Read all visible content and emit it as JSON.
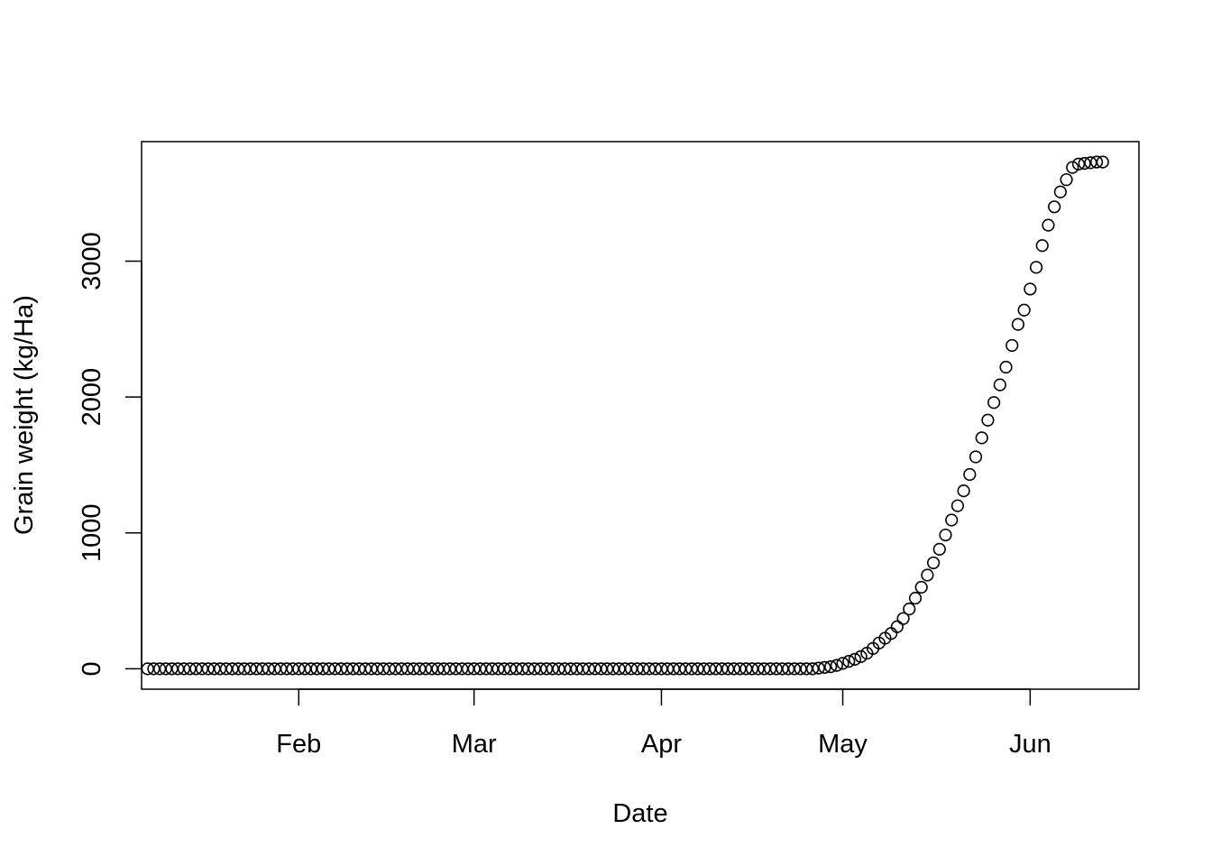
{
  "chart_data": {
    "type": "scatter",
    "title": "",
    "xlabel": "Date",
    "ylabel": "Grain weight (kg/Ha)",
    "x_scale": "date",
    "xlim": [
      "2024-01-06",
      "2024-06-19"
    ],
    "ylim": [
      -150,
      3880
    ],
    "x_ticks": [
      {
        "date": "2024-02-01",
        "label": "Feb"
      },
      {
        "date": "2024-03-01",
        "label": "Mar"
      },
      {
        "date": "2024-04-01",
        "label": "Apr"
      },
      {
        "date": "2024-05-01",
        "label": "May"
      },
      {
        "date": "2024-06-01",
        "label": "Jun"
      }
    ],
    "y_ticks": [
      0,
      1000,
      2000,
      3000
    ],
    "grid": false,
    "marker": "open-circle",
    "series": [
      {
        "points": [
          [
            "2024-01-07",
            0
          ],
          [
            "2024-01-08",
            0
          ],
          [
            "2024-01-09",
            0
          ],
          [
            "2024-01-10",
            0
          ],
          [
            "2024-01-11",
            0
          ],
          [
            "2024-01-12",
            0
          ],
          [
            "2024-01-13",
            0
          ],
          [
            "2024-01-14",
            0
          ],
          [
            "2024-01-15",
            0
          ],
          [
            "2024-01-16",
            0
          ],
          [
            "2024-01-17",
            0
          ],
          [
            "2024-01-18",
            0
          ],
          [
            "2024-01-19",
            0
          ],
          [
            "2024-01-20",
            0
          ],
          [
            "2024-01-21",
            0
          ],
          [
            "2024-01-22",
            0
          ],
          [
            "2024-01-23",
            0
          ],
          [
            "2024-01-24",
            0
          ],
          [
            "2024-01-25",
            0
          ],
          [
            "2024-01-26",
            0
          ],
          [
            "2024-01-27",
            0
          ],
          [
            "2024-01-28",
            0
          ],
          [
            "2024-01-29",
            0
          ],
          [
            "2024-01-30",
            0
          ],
          [
            "2024-01-31",
            0
          ],
          [
            "2024-02-01",
            0
          ],
          [
            "2024-02-02",
            0
          ],
          [
            "2024-02-03",
            0
          ],
          [
            "2024-02-04",
            0
          ],
          [
            "2024-02-05",
            0
          ],
          [
            "2024-02-06",
            0
          ],
          [
            "2024-02-07",
            0
          ],
          [
            "2024-02-08",
            0
          ],
          [
            "2024-02-09",
            0
          ],
          [
            "2024-02-10",
            0
          ],
          [
            "2024-02-11",
            0
          ],
          [
            "2024-02-12",
            0
          ],
          [
            "2024-02-13",
            0
          ],
          [
            "2024-02-14",
            0
          ],
          [
            "2024-02-15",
            0
          ],
          [
            "2024-02-16",
            0
          ],
          [
            "2024-02-17",
            0
          ],
          [
            "2024-02-18",
            0
          ],
          [
            "2024-02-19",
            0
          ],
          [
            "2024-02-20",
            0
          ],
          [
            "2024-02-21",
            0
          ],
          [
            "2024-02-22",
            0
          ],
          [
            "2024-02-23",
            0
          ],
          [
            "2024-02-24",
            0
          ],
          [
            "2024-02-25",
            0
          ],
          [
            "2024-02-26",
            0
          ],
          [
            "2024-02-27",
            0
          ],
          [
            "2024-02-28",
            0
          ],
          [
            "2024-02-29",
            0
          ],
          [
            "2024-03-01",
            0
          ],
          [
            "2024-03-02",
            0
          ],
          [
            "2024-03-03",
            0
          ],
          [
            "2024-03-04",
            0
          ],
          [
            "2024-03-05",
            0
          ],
          [
            "2024-03-06",
            0
          ],
          [
            "2024-03-07",
            0
          ],
          [
            "2024-03-08",
            0
          ],
          [
            "2024-03-09",
            0
          ],
          [
            "2024-03-10",
            0
          ],
          [
            "2024-03-11",
            0
          ],
          [
            "2024-03-12",
            0
          ],
          [
            "2024-03-13",
            0
          ],
          [
            "2024-03-14",
            0
          ],
          [
            "2024-03-15",
            0
          ],
          [
            "2024-03-16",
            0
          ],
          [
            "2024-03-17",
            0
          ],
          [
            "2024-03-18",
            0
          ],
          [
            "2024-03-19",
            0
          ],
          [
            "2024-03-20",
            0
          ],
          [
            "2024-03-21",
            0
          ],
          [
            "2024-03-22",
            0
          ],
          [
            "2024-03-23",
            0
          ],
          [
            "2024-03-24",
            0
          ],
          [
            "2024-03-25",
            0
          ],
          [
            "2024-03-26",
            0
          ],
          [
            "2024-03-27",
            0
          ],
          [
            "2024-03-28",
            0
          ],
          [
            "2024-03-29",
            0
          ],
          [
            "2024-03-30",
            0
          ],
          [
            "2024-03-31",
            0
          ],
          [
            "2024-04-01",
            0
          ],
          [
            "2024-04-02",
            0
          ],
          [
            "2024-04-03",
            0
          ],
          [
            "2024-04-04",
            0
          ],
          [
            "2024-04-05",
            0
          ],
          [
            "2024-04-06",
            0
          ],
          [
            "2024-04-07",
            0
          ],
          [
            "2024-04-08",
            0
          ],
          [
            "2024-04-09",
            0
          ],
          [
            "2024-04-10",
            0
          ],
          [
            "2024-04-11",
            0
          ],
          [
            "2024-04-12",
            0
          ],
          [
            "2024-04-13",
            0
          ],
          [
            "2024-04-14",
            0
          ],
          [
            "2024-04-15",
            0
          ],
          [
            "2024-04-16",
            0
          ],
          [
            "2024-04-17",
            0
          ],
          [
            "2024-04-18",
            0
          ],
          [
            "2024-04-19",
            0
          ],
          [
            "2024-04-20",
            0
          ],
          [
            "2024-04-21",
            0
          ],
          [
            "2024-04-22",
            0
          ],
          [
            "2024-04-23",
            0
          ],
          [
            "2024-04-24",
            0
          ],
          [
            "2024-04-25",
            0
          ],
          [
            "2024-04-26",
            0
          ],
          [
            "2024-04-27",
            5
          ],
          [
            "2024-04-28",
            10
          ],
          [
            "2024-04-29",
            15
          ],
          [
            "2024-04-30",
            25
          ],
          [
            "2024-05-01",
            40
          ],
          [
            "2024-05-02",
            55
          ],
          [
            "2024-05-03",
            70
          ],
          [
            "2024-05-04",
            90
          ],
          [
            "2024-05-05",
            115
          ],
          [
            "2024-05-06",
            150
          ],
          [
            "2024-05-07",
            190
          ],
          [
            "2024-05-08",
            225
          ],
          [
            "2024-05-09",
            260
          ],
          [
            "2024-05-10",
            310
          ],
          [
            "2024-05-11",
            370
          ],
          [
            "2024-05-12",
            440
          ],
          [
            "2024-05-13",
            520
          ],
          [
            "2024-05-14",
            600
          ],
          [
            "2024-05-15",
            690
          ],
          [
            "2024-05-16",
            780
          ],
          [
            "2024-05-17",
            880
          ],
          [
            "2024-05-18",
            985
          ],
          [
            "2024-05-19",
            1095
          ],
          [
            "2024-05-20",
            1200
          ],
          [
            "2024-05-21",
            1310
          ],
          [
            "2024-05-22",
            1430
          ],
          [
            "2024-05-23",
            1560
          ],
          [
            "2024-05-24",
            1700
          ],
          [
            "2024-05-25",
            1830
          ],
          [
            "2024-05-26",
            1960
          ],
          [
            "2024-05-27",
            2090
          ],
          [
            "2024-05-28",
            2220
          ],
          [
            "2024-05-29",
            2380
          ],
          [
            "2024-05-30",
            2535
          ],
          [
            "2024-05-31",
            2640
          ],
          [
            "2024-06-01",
            2795
          ],
          [
            "2024-06-02",
            2955
          ],
          [
            "2024-06-03",
            3115
          ],
          [
            "2024-06-04",
            3265
          ],
          [
            "2024-06-05",
            3400
          ],
          [
            "2024-06-06",
            3510
          ],
          [
            "2024-06-07",
            3600
          ],
          [
            "2024-06-08",
            3690
          ],
          [
            "2024-06-09",
            3715
          ],
          [
            "2024-06-10",
            3720
          ],
          [
            "2024-06-11",
            3725
          ],
          [
            "2024-06-12",
            3730
          ],
          [
            "2024-06-13",
            3730
          ]
        ]
      }
    ]
  }
}
